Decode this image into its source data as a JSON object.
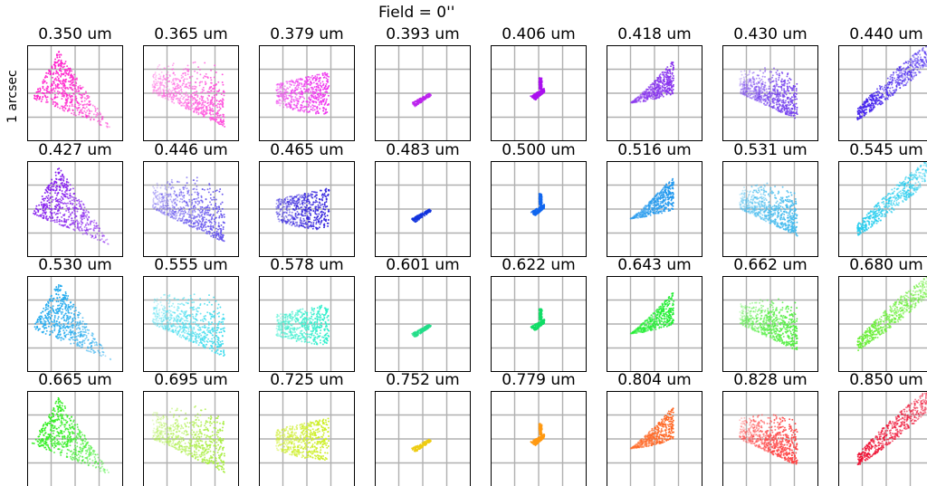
{
  "figure": {
    "title": "Field = 0''",
    "ylabel": "1 arcsec"
  },
  "chart_data": {
    "type": "scatter",
    "title": "Field = 0''",
    "ylabel": "1 arcsec",
    "grid": true,
    "rows": [
      {
        "labels": [
          "0.350 um",
          "0.365 um",
          "0.379 um",
          "0.393 um",
          "0.406 um",
          "0.418 um",
          "0.430 um",
          "0.440 um"
        ],
        "colors": [
          "#ff22cc",
          "#ff55dd",
          "#ee33ee",
          "#bb22ee",
          "#aa11ee",
          "#8833ee",
          "#7744ee",
          "#4422ee"
        ]
      },
      {
        "labels": [
          "0.427 um",
          "0.446 um",
          "0.465 um",
          "0.483 um",
          "0.500 um",
          "0.516 um",
          "0.531 um",
          "0.545 um"
        ],
        "colors": [
          "#8822ee",
          "#6655ee",
          "#3322dd",
          "#1133dd",
          "#1166ee",
          "#2299ee",
          "#44bbee",
          "#22ccee"
        ]
      },
      {
        "labels": [
          "0.530 um",
          "0.555 um",
          "0.578 um",
          "0.601 um",
          "0.622 um",
          "0.643 um",
          "0.662 um",
          "0.680 um"
        ],
        "colors": [
          "#22aaee",
          "#44ddee",
          "#33eecc",
          "#22dd88",
          "#11dd66",
          "#22ee33",
          "#55ee44",
          "#66ee33"
        ]
      },
      {
        "labels": [
          "0.665 um",
          "0.695 um",
          "0.725 um",
          "0.752 um",
          "0.779 um",
          "0.804 um",
          "0.828 um",
          "0.850 um"
        ],
        "colors": [
          "#33ee22",
          "#aaee44",
          "#ccee22",
          "#eecc11",
          "#ff9911",
          "#ff6622",
          "#ff4444",
          "#ee1133"
        ]
      }
    ]
  }
}
